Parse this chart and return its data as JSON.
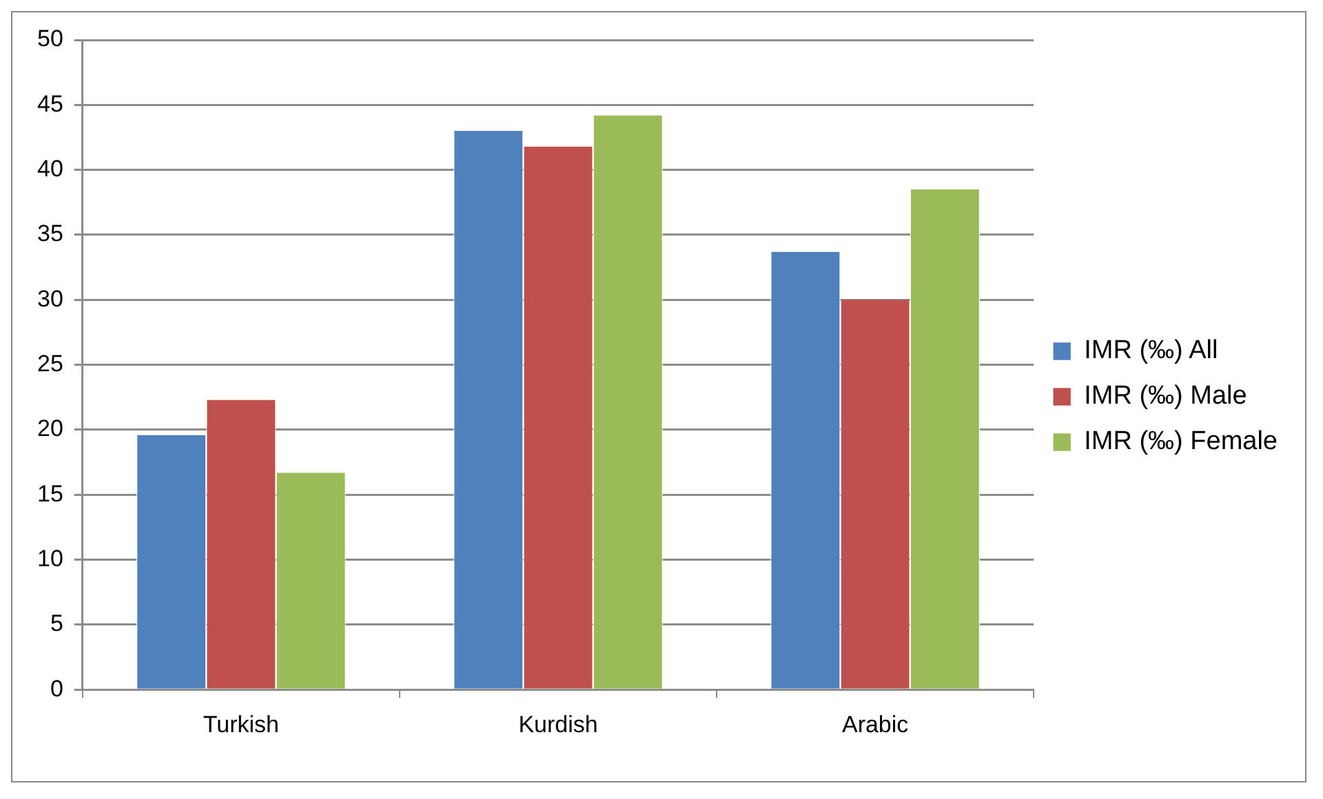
{
  "chart_data": {
    "type": "bar",
    "categories": [
      "Turkish",
      "Kurdish",
      "Arabic"
    ],
    "series": [
      {
        "name": "IMR (‰) All",
        "color": "#4f81bd",
        "values": [
          19.6,
          43.0,
          33.7
        ]
      },
      {
        "name": "IMR (‰) Male",
        "color": "#c0504d",
        "values": [
          22.3,
          41.8,
          30.0
        ]
      },
      {
        "name": "IMR (‰) Female",
        "color": "#9bbb59",
        "values": [
          16.7,
          44.2,
          38.5
        ]
      }
    ],
    "ylim": [
      0,
      50
    ],
    "yticks": [
      0,
      5,
      10,
      15,
      20,
      25,
      30,
      35,
      40,
      45,
      50
    ],
    "grid": "y",
    "legend": "right"
  }
}
